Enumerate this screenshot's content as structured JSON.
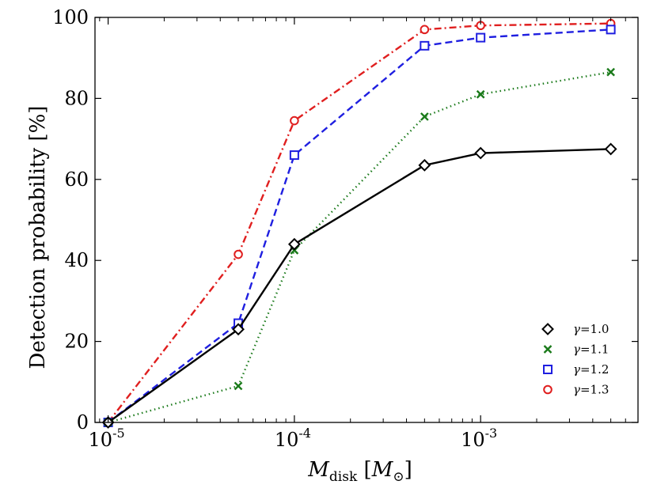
{
  "chart_data": {
    "type": "line",
    "title": "",
    "xlabel": "M_disk [M_⊙]",
    "xlabel_main": "M",
    "xlabel_sub": "disk",
    "xlabel_unit_open": "[",
    "xlabel_unit_main": "M",
    "xlabel_unit_sub": "⊙",
    "xlabel_unit_close": "]",
    "ylabel": "Detection probability [%]",
    "xscale": "log",
    "xlim": [
      8.5e-06,
      0.007
    ],
    "ylim": [
      0,
      100
    ],
    "yticks": [
      0,
      20,
      40,
      60,
      80,
      100
    ],
    "ytick_labels": [
      "0",
      "20",
      "40",
      "60",
      "80",
      "100"
    ],
    "xticks": [
      1e-05,
      0.0001,
      0.001
    ],
    "xtick_base": "10",
    "xtick_exponents": [
      "-5",
      "-4",
      "-3"
    ],
    "grid": false,
    "legend_position": "lower-right",
    "x": [
      1e-05,
      5e-05,
      0.0001,
      0.0005,
      0.001,
      0.005
    ],
    "series": [
      {
        "name": "γ=1.0",
        "label_prefix": "γ",
        "label_value": "=1.0",
        "color": "#000000",
        "marker": "diamond",
        "line": "solid",
        "values": [
          0,
          23,
          44,
          63.5,
          66.5,
          67.5
        ]
      },
      {
        "name": "γ=1.1",
        "label_prefix": "γ",
        "label_value": "=1.1",
        "color": "#1a7a1a",
        "marker": "x",
        "line": "dotted",
        "values": [
          0,
          9,
          42.5,
          75.5,
          81,
          86.5
        ]
      },
      {
        "name": "γ=1.2",
        "label_prefix": "γ",
        "label_value": "=1.2",
        "color": "#1f1fe0",
        "marker": "square",
        "line": "dashed",
        "values": [
          0,
          24.5,
          66,
          93,
          95,
          97
        ]
      },
      {
        "name": "γ=1.3",
        "label_prefix": "γ",
        "label_value": "=1.3",
        "color": "#e01f1f",
        "marker": "circle",
        "line": "dashdot",
        "values": [
          0,
          41.5,
          74.5,
          97,
          98,
          98.5
        ]
      }
    ]
  }
}
